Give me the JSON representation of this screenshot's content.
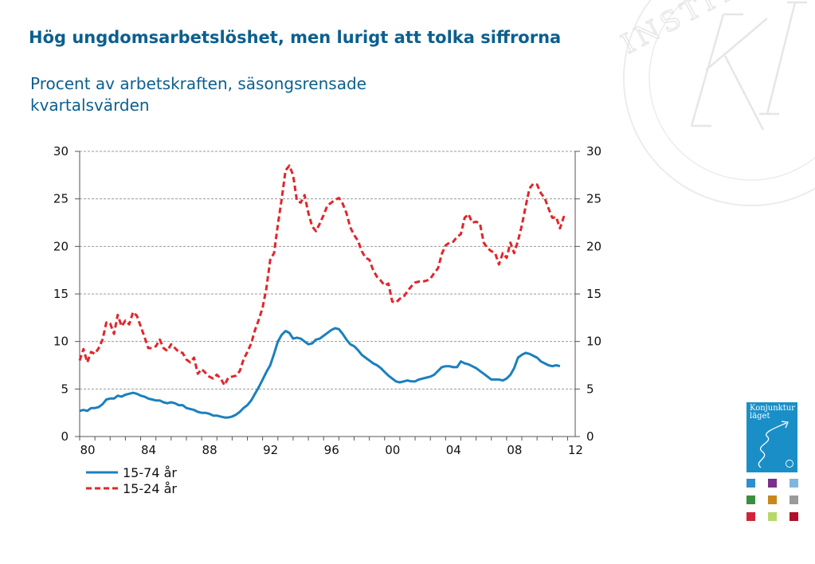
{
  "header": {
    "title": "Hög ungdomsarbetslöshet, men lurigt att tolka siffrorna",
    "subtitle": "Procent av arbetskraften, säsongsrensade kvartalsvärden"
  },
  "branding": {
    "seal_text": "INSTITUTET",
    "logo_line1": "Konjunktur",
    "logo_line2": "läget",
    "logo_color": "#1a8fc7",
    "swatch_colors": [
      "#2e8fd0",
      "#7a2f8a",
      "#7fb6df",
      "#3a8f3f",
      "#c8871a",
      "#9a9a9a",
      "#d0263c",
      "#b5d86a",
      "#b0102a"
    ]
  },
  "chart_data": {
    "type": "line",
    "xlim": [
      1980,
      2012.5
    ],
    "ylim": [
      0,
      30
    ],
    "yticks": [
      0,
      5,
      10,
      15,
      20,
      25,
      30
    ],
    "xticks": [
      1980,
      1984,
      1988,
      1992,
      1996,
      2000,
      2004,
      2008,
      2012
    ],
    "xtick_labels": [
      "80",
      "84",
      "88",
      "92",
      "96",
      "00",
      "04",
      "08",
      "12"
    ],
    "right_axis": true,
    "grid": "horizontal-dashed",
    "legend_position": "bottom-left",
    "series": [
      {
        "name": "15-74 år",
        "color": "#1b80bd",
        "style": "solid",
        "points": [
          [
            1980,
            2.7
          ],
          [
            1980.25,
            2.8
          ],
          [
            1980.5,
            2.7
          ],
          [
            1980.75,
            3.0
          ],
          [
            1981,
            3.0
          ],
          [
            1981.25,
            3.1
          ],
          [
            1981.5,
            3.4
          ],
          [
            1981.75,
            3.9
          ],
          [
            1982,
            4.0
          ],
          [
            1982.25,
            4.0
          ],
          [
            1982.5,
            4.3
          ],
          [
            1982.75,
            4.2
          ],
          [
            1983,
            4.4
          ],
          [
            1983.25,
            4.5
          ],
          [
            1983.5,
            4.6
          ],
          [
            1983.75,
            4.5
          ],
          [
            1984,
            4.3
          ],
          [
            1984.25,
            4.2
          ],
          [
            1984.5,
            4.0
          ],
          [
            1984.75,
            3.9
          ],
          [
            1985,
            3.8
          ],
          [
            1985.25,
            3.8
          ],
          [
            1985.5,
            3.6
          ],
          [
            1985.75,
            3.5
          ],
          [
            1986,
            3.6
          ],
          [
            1986.25,
            3.5
          ],
          [
            1986.5,
            3.3
          ],
          [
            1986.75,
            3.3
          ],
          [
            1987,
            3.0
          ],
          [
            1987.25,
            2.9
          ],
          [
            1987.5,
            2.8
          ],
          [
            1987.75,
            2.6
          ],
          [
            1988,
            2.5
          ],
          [
            1988.25,
            2.5
          ],
          [
            1988.5,
            2.4
          ],
          [
            1988.75,
            2.2
          ],
          [
            1989,
            2.2
          ],
          [
            1989.25,
            2.1
          ],
          [
            1989.5,
            2.0
          ],
          [
            1989.75,
            2.0
          ],
          [
            1990,
            2.1
          ],
          [
            1990.25,
            2.3
          ],
          [
            1990.5,
            2.6
          ],
          [
            1990.75,
            3.0
          ],
          [
            1991,
            3.3
          ],
          [
            1991.25,
            3.8
          ],
          [
            1991.5,
            4.5
          ],
          [
            1991.75,
            5.2
          ],
          [
            1992,
            6.0
          ],
          [
            1992.25,
            6.8
          ],
          [
            1992.5,
            7.5
          ],
          [
            1992.75,
            8.7
          ],
          [
            1993,
            10.0
          ],
          [
            1993.25,
            10.7
          ],
          [
            1993.5,
            11.1
          ],
          [
            1993.75,
            10.9
          ],
          [
            1994,
            10.3
          ],
          [
            1994.25,
            10.4
          ],
          [
            1994.5,
            10.3
          ],
          [
            1994.75,
            10.0
          ],
          [
            1995,
            9.7
          ],
          [
            1995.25,
            9.8
          ],
          [
            1995.5,
            10.2
          ],
          [
            1995.75,
            10.3
          ],
          [
            1996,
            10.6
          ],
          [
            1996.25,
            10.9
          ],
          [
            1996.5,
            11.2
          ],
          [
            1996.75,
            11.4
          ],
          [
            1997,
            11.3
          ],
          [
            1997.25,
            10.8
          ],
          [
            1997.5,
            10.2
          ],
          [
            1997.75,
            9.7
          ],
          [
            1998,
            9.5
          ],
          [
            1998.25,
            9.1
          ],
          [
            1998.5,
            8.6
          ],
          [
            1998.75,
            8.3
          ],
          [
            1999,
            8.0
          ],
          [
            1999.25,
            7.7
          ],
          [
            1999.5,
            7.5
          ],
          [
            1999.75,
            7.2
          ],
          [
            2000,
            6.8
          ],
          [
            2000.25,
            6.4
          ],
          [
            2000.5,
            6.1
          ],
          [
            2000.75,
            5.8
          ],
          [
            2001,
            5.7
          ],
          [
            2001.25,
            5.8
          ],
          [
            2001.5,
            5.9
          ],
          [
            2001.75,
            5.8
          ],
          [
            2002,
            5.8
          ],
          [
            2002.25,
            6.0
          ],
          [
            2002.5,
            6.1
          ],
          [
            2002.75,
            6.2
          ],
          [
            2003,
            6.3
          ],
          [
            2003.25,
            6.5
          ],
          [
            2003.5,
            6.9
          ],
          [
            2003.75,
            7.3
          ],
          [
            2004,
            7.4
          ],
          [
            2004.25,
            7.4
          ],
          [
            2004.5,
            7.3
          ],
          [
            2004.75,
            7.3
          ],
          [
            2005,
            7.9
          ],
          [
            2005.25,
            7.7
          ],
          [
            2005.5,
            7.6
          ],
          [
            2005.75,
            7.4
          ],
          [
            2006,
            7.2
          ],
          [
            2006.25,
            6.9
          ],
          [
            2006.5,
            6.6
          ],
          [
            2006.75,
            6.3
          ],
          [
            2007,
            6.0
          ],
          [
            2007.25,
            6.0
          ],
          [
            2007.5,
            6.0
          ],
          [
            2007.75,
            5.9
          ],
          [
            2008,
            6.1
          ],
          [
            2008.25,
            6.5
          ],
          [
            2008.5,
            7.2
          ],
          [
            2008.75,
            8.3
          ],
          [
            2009,
            8.6
          ],
          [
            2009.25,
            8.8
          ],
          [
            2009.5,
            8.7
          ],
          [
            2009.75,
            8.5
          ],
          [
            2010,
            8.3
          ],
          [
            2010.25,
            7.9
          ],
          [
            2010.5,
            7.7
          ],
          [
            2010.75,
            7.5
          ],
          [
            2011,
            7.4
          ],
          [
            2011.25,
            7.5
          ],
          [
            2011.5,
            7.4
          ]
        ]
      },
      {
        "name": "15-24 år",
        "color": "#e0262b",
        "style": "dashed",
        "points": [
          [
            1980,
            8.0
          ],
          [
            1980.25,
            9.2
          ],
          [
            1980.5,
            7.8
          ],
          [
            1980.75,
            8.9
          ],
          [
            1981,
            8.7
          ],
          [
            1981.25,
            9.3
          ],
          [
            1981.5,
            10.2
          ],
          [
            1981.75,
            12.0
          ],
          [
            1982,
            11.9
          ],
          [
            1982.25,
            10.8
          ],
          [
            1982.5,
            12.8
          ],
          [
            1982.75,
            11.6
          ],
          [
            1983,
            12.2
          ],
          [
            1983.25,
            11.8
          ],
          [
            1983.5,
            13.1
          ],
          [
            1983.75,
            12.7
          ],
          [
            1984,
            11.6
          ],
          [
            1984.25,
            10.5
          ],
          [
            1984.5,
            9.3
          ],
          [
            1984.75,
            9.3
          ],
          [
            1985,
            9.5
          ],
          [
            1985.25,
            10.2
          ],
          [
            1985.5,
            9.3
          ],
          [
            1985.75,
            9.0
          ],
          [
            1986,
            9.7
          ],
          [
            1986.25,
            9.3
          ],
          [
            1986.5,
            8.9
          ],
          [
            1986.75,
            8.8
          ],
          [
            1987,
            8.1
          ],
          [
            1987.25,
            7.8
          ],
          [
            1987.5,
            8.3
          ],
          [
            1987.75,
            6.6
          ],
          [
            1988,
            7.1
          ],
          [
            1988.25,
            6.7
          ],
          [
            1988.5,
            6.3
          ],
          [
            1988.75,
            6.1
          ],
          [
            1989,
            6.5
          ],
          [
            1989.25,
            6.1
          ],
          [
            1989.5,
            5.4
          ],
          [
            1989.75,
            6.2
          ],
          [
            1990,
            6.3
          ],
          [
            1990.25,
            6.4
          ],
          [
            1990.5,
            6.9
          ],
          [
            1990.75,
            8.1
          ],
          [
            1991,
            8.9
          ],
          [
            1991.25,
            9.8
          ],
          [
            1991.5,
            11.2
          ],
          [
            1991.75,
            12.3
          ],
          [
            1992,
            13.6
          ],
          [
            1992.25,
            15.6
          ],
          [
            1992.5,
            18.6
          ],
          [
            1992.75,
            19.3
          ],
          [
            1993,
            22.3
          ],
          [
            1993.25,
            25.0
          ],
          [
            1993.5,
            28.0
          ],
          [
            1993.75,
            28.5
          ],
          [
            1994,
            27.5
          ],
          [
            1994.25,
            24.8
          ],
          [
            1994.5,
            24.6
          ],
          [
            1994.75,
            25.4
          ],
          [
            1995,
            23.5
          ],
          [
            1995.25,
            22.1
          ],
          [
            1995.5,
            21.6
          ],
          [
            1995.75,
            22.4
          ],
          [
            1996,
            23.3
          ],
          [
            1996.25,
            24.3
          ],
          [
            1996.5,
            24.6
          ],
          [
            1996.75,
            24.9
          ],
          [
            1997,
            25.1
          ],
          [
            1997.25,
            24.5
          ],
          [
            1997.5,
            23.5
          ],
          [
            1997.75,
            22.0
          ],
          [
            1998,
            21.2
          ],
          [
            1998.25,
            20.6
          ],
          [
            1998.5,
            19.5
          ],
          [
            1998.75,
            18.8
          ],
          [
            1999,
            18.6
          ],
          [
            1999.25,
            17.5
          ],
          [
            1999.5,
            16.8
          ],
          [
            1999.75,
            16.4
          ],
          [
            2000,
            15.9
          ],
          [
            2000.25,
            16.1
          ],
          [
            2000.5,
            14.2
          ],
          [
            2000.75,
            14.1
          ],
          [
            2001,
            14.5
          ],
          [
            2001.25,
            14.7
          ],
          [
            2001.5,
            15.3
          ],
          [
            2001.75,
            15.8
          ],
          [
            2002,
            16.2
          ],
          [
            2002.25,
            16.3
          ],
          [
            2002.5,
            16.3
          ],
          [
            2002.75,
            16.4
          ],
          [
            2003,
            16.6
          ],
          [
            2003.25,
            17.2
          ],
          [
            2003.5,
            17.7
          ],
          [
            2003.75,
            19.2
          ],
          [
            2004,
            20.1
          ],
          [
            2004.25,
            20.4
          ],
          [
            2004.5,
            20.5
          ],
          [
            2004.75,
            21.0
          ],
          [
            2005,
            21.3
          ],
          [
            2005.25,
            23.0
          ],
          [
            2005.5,
            23.4
          ],
          [
            2005.75,
            22.5
          ],
          [
            2006,
            22.6
          ],
          [
            2006.25,
            22.4
          ],
          [
            2006.5,
            20.4
          ],
          [
            2006.75,
            19.8
          ],
          [
            2007,
            19.5
          ],
          [
            2007.25,
            19.3
          ],
          [
            2007.5,
            18.1
          ],
          [
            2007.75,
            19.3
          ],
          [
            2008,
            18.8
          ],
          [
            2008.25,
            20.4
          ],
          [
            2008.5,
            19.3
          ],
          [
            2008.75,
            20.6
          ],
          [
            2009,
            22.2
          ],
          [
            2009.25,
            24.2
          ],
          [
            2009.5,
            26.1
          ],
          [
            2009.75,
            26.6
          ],
          [
            2010,
            26.5
          ],
          [
            2010.25,
            25.6
          ],
          [
            2010.5,
            25.1
          ],
          [
            2010.75,
            24.0
          ],
          [
            2011,
            23.0
          ],
          [
            2011.25,
            23.1
          ],
          [
            2011.5,
            21.9
          ],
          [
            2011.75,
            23.1
          ],
          [
            2012,
            22.9
          ]
        ]
      }
    ]
  }
}
